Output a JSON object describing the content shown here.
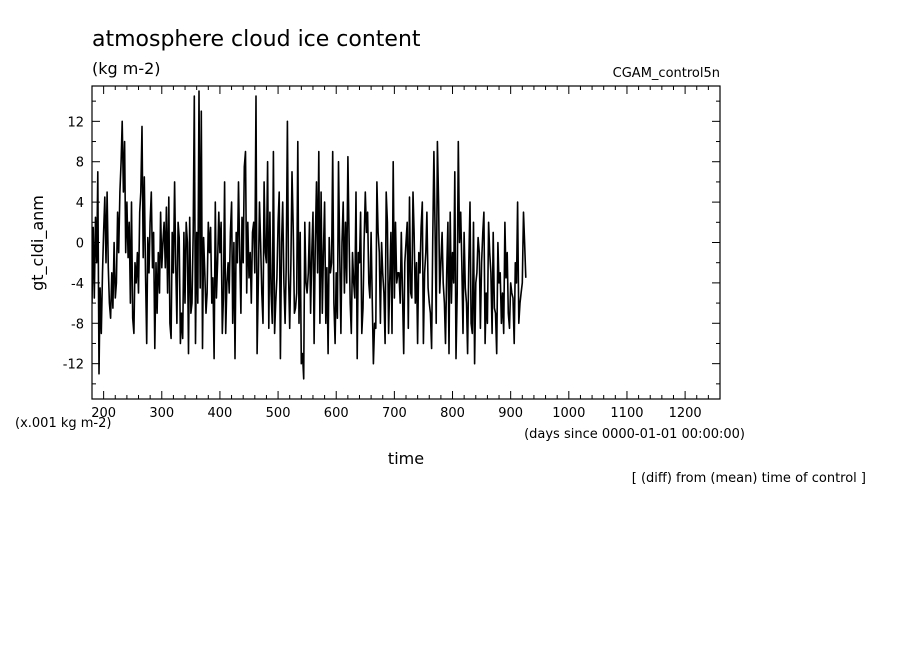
{
  "chart_data": {
    "type": "line",
    "title": "atmosphere cloud ice content",
    "units": "(kg m-2)",
    "run_label": "CGAM_control5n",
    "ylabel": "gt_cldi_anm",
    "xlabel": "time",
    "x_units": "(days since 0000-01-01 00:00:00)",
    "y_scale_note": "(x.001 kg m-2)",
    "footnote": "[ (diff) from (mean) time of control ]",
    "xlim": [
      180,
      1260
    ],
    "ylim": [
      -15.5,
      15.5
    ],
    "x_ticks": [
      200,
      300,
      400,
      500,
      600,
      700,
      800,
      900,
      1000,
      1100,
      1200
    ],
    "x_tick_labels": [
      "200",
      "300",
      "400",
      "500",
      "600",
      "700",
      "800",
      "900",
      "1000",
      "1100",
      "1200"
    ],
    "y_ticks": [
      -12,
      -8,
      -4,
      0,
      4,
      8,
      12
    ],
    "y_tick_labels": [
      "-12",
      "-8",
      "-4",
      "0",
      "4",
      "8",
      "12"
    ],
    "series": [
      {
        "name": "gt_cldi_anm",
        "x_start": 180,
        "x_step": 2,
        "values": [
          -6,
          1.5,
          -5.5,
          2.5,
          -2,
          7,
          -13,
          -4.5,
          -9,
          -3,
          1,
          4.5,
          -2,
          5,
          -2.5,
          -6,
          -7.5,
          -3,
          -6.5,
          0,
          -5.5,
          -4,
          3,
          -1,
          5,
          8,
          12,
          5,
          10,
          -1,
          4,
          -1.5,
          2,
          -6,
          4,
          -7.5,
          -9,
          -2,
          -4,
          -1,
          -5,
          3,
          5,
          11.5,
          -1.5,
          6.5,
          -3,
          -10,
          0.5,
          -3,
          2,
          5,
          -2.5,
          1,
          -10.5,
          -2,
          -7,
          -1,
          -5,
          3,
          -2.5,
          0,
          2,
          -2.5,
          3.5,
          -5,
          4.5,
          -8,
          -9.5,
          1,
          -3,
          6,
          -2,
          -8,
          2,
          0.5,
          -10,
          -7,
          -9.5,
          1,
          -6,
          2,
          0,
          -11,
          2.5,
          -7,
          -6,
          1,
          14.5,
          -10,
          1,
          -6,
          15,
          -4.5,
          13,
          -10.5,
          0.5,
          -3,
          -7,
          -5,
          2,
          -1,
          1.5,
          -6,
          -3.5,
          -11.5,
          4,
          -5.5,
          -2,
          3,
          -1,
          2,
          -9,
          -5.5,
          6,
          -9,
          -4,
          -2,
          -5,
          1,
          4,
          -8,
          0,
          -11.5,
          1,
          -2,
          6,
          -1,
          -7,
          2.5,
          -2,
          7.5,
          9,
          -5,
          2,
          -3.5,
          -1,
          -6,
          1,
          2,
          -3,
          14.5,
          -11,
          -4,
          4,
          0,
          -5,
          -8,
          6,
          -1,
          -2,
          8,
          -8.5,
          3,
          -5,
          -8,
          9,
          -9,
          -6,
          -3.5,
          2,
          5,
          -11.5,
          0,
          4,
          -4,
          -8,
          -2.5,
          12,
          -3,
          -8.5,
          -2,
          7,
          1.5,
          -7,
          -6.5,
          -5,
          10,
          -8,
          1,
          -12,
          -11,
          -13.5,
          2,
          -4,
          -5,
          -3,
          2,
          -7,
          -1,
          3,
          -10,
          0,
          6,
          -3,
          9,
          -8,
          5,
          -7,
          -1,
          4,
          -8,
          -2.5,
          -11,
          0.5,
          -3,
          -2,
          9,
          -6,
          -10,
          -3,
          -7.5,
          8,
          -1,
          -9,
          0,
          4,
          -5,
          2,
          -4,
          8.5,
          1,
          -6,
          -9,
          -1,
          -4,
          -5.5,
          5,
          -11.5,
          -1,
          -2,
          3,
          -9,
          -6.5,
          0,
          5,
          1,
          3,
          -4,
          -5.5,
          1,
          -6,
          -12,
          -8,
          -8.5,
          6,
          1,
          -1,
          -8,
          0,
          -3,
          -5,
          -10,
          5,
          2,
          -9,
          -4,
          1,
          -9,
          8,
          -5.5,
          2,
          -4,
          -3,
          -3,
          -6,
          1,
          -5,
          -11,
          -2,
          0,
          2,
          -8.5,
          4.5,
          -5,
          -5.5,
          5,
          1,
          -6,
          -2,
          -10,
          -1,
          -3,
          1.5,
          4,
          -10,
          -3,
          -1,
          3,
          -4.5,
          -6,
          -7,
          -10.5,
          0,
          9,
          1,
          -8,
          10,
          4,
          -5,
          -2,
          1,
          -4,
          -6,
          -10,
          -3,
          2,
          -11,
          3,
          -6,
          -1,
          -4,
          7,
          -11.5,
          -5,
          10,
          0,
          3,
          -2,
          -9,
          1,
          -4.5,
          -6,
          -11,
          -2,
          4,
          -8,
          -9,
          2,
          -12,
          -4,
          -3,
          0.5,
          -1,
          -8.5,
          -2,
          1,
          3,
          -10,
          -5,
          -8,
          2,
          -1,
          -3,
          -9,
          1,
          -6.5,
          -7,
          -11,
          0,
          -4,
          -3,
          -8,
          -5,
          -9,
          2,
          -3.5,
          -1,
          -7,
          -8.5,
          -4,
          -5,
          -5.5,
          -10,
          -2,
          -4,
          4,
          -8,
          -6,
          -5,
          -4,
          3,
          0,
          -3.5
        ]
      }
    ]
  }
}
